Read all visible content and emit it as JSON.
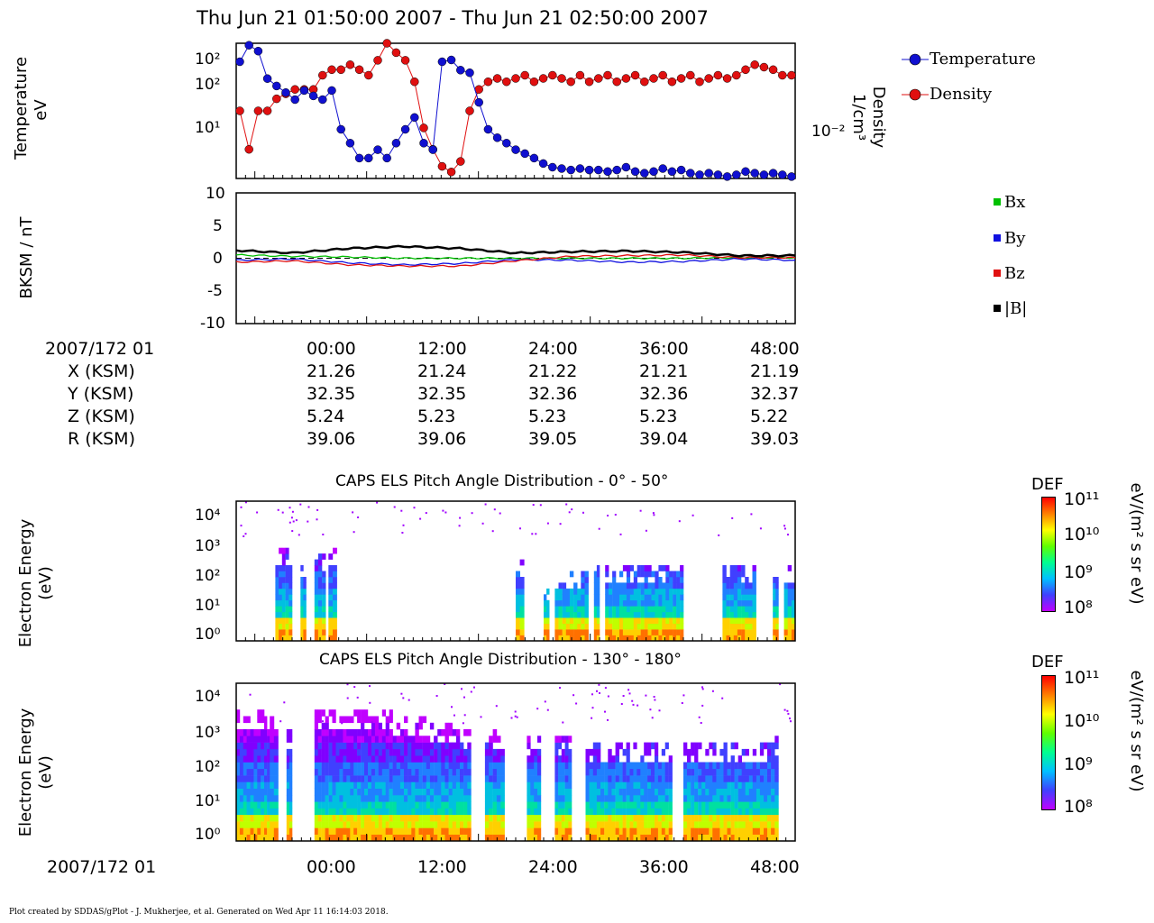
{
  "header": {
    "title": "Thu Jun 21 01:50:00 2007 - Thu Jun 21 02:50:00 2007"
  },
  "colors": {
    "temperature": "#1010d0",
    "density": "#e01010",
    "bx": "#00c000",
    "by": "#1010e0",
    "bz": "#e01010",
    "bmag": "#000000"
  },
  "chart_data": [
    {
      "type": "scatter",
      "panel": "plasma-moments",
      "ylabel": "Temperature\neV",
      "ylabel_right": "Density\n1/cm³",
      "yscale": "log",
      "left_ticks": [
        "10²",
        "10²",
        "10¹"
      ],
      "right_ticks": [
        "10⁻²"
      ],
      "legend": [
        "Temperature",
        "Density"
      ],
      "legend_placement": "right",
      "x": [
        0,
        1,
        2,
        3,
        4,
        5,
        6,
        7,
        8,
        9,
        10,
        11,
        12,
        13,
        14,
        15,
        16,
        17,
        18,
        19,
        20,
        21,
        22,
        23,
        24,
        25,
        26,
        27,
        28,
        29,
        30,
        31,
        32,
        33,
        34,
        35,
        36,
        37,
        38,
        39,
        40,
        41,
        42,
        43,
        44,
        45,
        46,
        47,
        48,
        49,
        50,
        51,
        52,
        53,
        54,
        55,
        56,
        57,
        58,
        59,
        60
      ],
      "series": [
        {
          "name": "Temperature",
          "values": [
            80,
            140,
            115,
            45,
            35,
            28,
            22,
            30,
            25,
            22,
            30,
            8,
            5,
            3,
            3,
            4,
            3,
            5,
            8,
            12,
            5,
            4,
            80,
            85,
            60,
            55,
            20,
            8,
            6,
            5,
            4,
            3.5,
            3,
            2.5,
            2.2,
            2.1,
            2,
            2.1,
            2,
            2,
            1.9,
            2,
            2.2,
            1.9,
            1.8,
            1.9,
            2.1,
            1.9,
            2,
            1.8,
            1.7,
            1.8,
            1.7,
            1.6,
            1.7,
            1.9,
            1.8,
            1.7,
            1.8,
            1.7,
            1.6
          ]
        },
        {
          "name": "Density",
          "values": [
            0.03,
            0.012,
            0.03,
            0.03,
            0.04,
            0.045,
            0.05,
            0.05,
            0.05,
            0.07,
            0.08,
            0.08,
            0.09,
            0.08,
            0.07,
            0.1,
            0.15,
            0.12,
            0.1,
            0.06,
            0.02,
            0.012,
            0.008,
            0.007,
            0.009,
            0.03,
            0.05,
            0.06,
            0.065,
            0.06,
            0.065,
            0.07,
            0.06,
            0.065,
            0.07,
            0.065,
            0.06,
            0.07,
            0.06,
            0.065,
            0.07,
            0.06,
            0.065,
            0.07,
            0.06,
            0.065,
            0.07,
            0.06,
            0.065,
            0.07,
            0.06,
            0.065,
            0.07,
            0.065,
            0.07,
            0.08,
            0.09,
            0.085,
            0.08,
            0.07,
            0.07
          ]
        }
      ]
    },
    {
      "type": "line",
      "panel": "magnetic-field",
      "ylabel": "BKSM / nT",
      "ylim": [
        -10,
        10
      ],
      "y_ticks": [
        "10",
        "5",
        "0",
        "-5",
        "-10"
      ],
      "legend": [
        "Bx",
        "By",
        "Bz",
        "|B|"
      ],
      "legend_placement": "right",
      "x": [
        0,
        5,
        10,
        15,
        20,
        25,
        30,
        35,
        40,
        45,
        50
      ],
      "series": [
        {
          "name": "Bx",
          "values": [
            0.5,
            0.3,
            0.2,
            0,
            0,
            0,
            0,
            0,
            0,
            0.1,
            0.1
          ]
        },
        {
          "name": "By",
          "values": [
            -0.3,
            -0.1,
            -0.7,
            -1,
            -0.8,
            -0.2,
            -0.3,
            -0.6,
            -0.5,
            -0.1,
            -0.3
          ]
        },
        {
          "name": "Bz",
          "values": [
            -0.6,
            -0.4,
            -1,
            -1.2,
            -1.2,
            -0.4,
            0.3,
            0.4,
            0.5,
            0.1,
            0.1
          ]
        },
        {
          "name": "|B|",
          "values": [
            1.2,
            0.8,
            1.5,
            1.8,
            1.5,
            0.8,
            1,
            1.1,
            0.9,
            0.4,
            0.4
          ]
        }
      ]
    },
    {
      "type": "heatmap",
      "panel": "pad-0-50",
      "title": "CAPS ELS Pitch Angle Distribution - 0° - 50°",
      "ylabel": "Electron Energy\n(eV)",
      "y_ticks": [
        "10⁴",
        "10³",
        "10²",
        "10¹",
        "10⁰"
      ],
      "colorbar": {
        "label": "DEF",
        "unit": "eV/(m² s sr eV)",
        "ticks": [
          "10¹¹",
          "10¹⁰",
          "10⁹",
          "10⁸"
        ]
      }
    },
    {
      "type": "heatmap",
      "panel": "pad-130-180",
      "title": "CAPS ELS Pitch Angle Distribution - 130° - 180°",
      "ylabel": "Electron Energy\n(eV)",
      "y_ticks": [
        "10⁴",
        "10³",
        "10²",
        "10¹",
        "10⁰"
      ],
      "colorbar": {
        "label": "DEF",
        "unit": "eV/(m² s sr eV)",
        "ticks": [
          "10¹¹",
          "10¹⁰",
          "10⁹",
          "10⁸"
        ]
      }
    }
  ],
  "ephemeris": {
    "row_labels": [
      "2007/172 01",
      "X (KSM)",
      "Y (KSM)",
      "Z (KSM)",
      "R (KSM)"
    ],
    "columns": [
      {
        "time": "00:00",
        "x": "21.26",
        "y": "32.35",
        "z": "5.24",
        "r": "39.06"
      },
      {
        "time": "12:00",
        "x": "21.24",
        "y": "32.35",
        "z": "5.23",
        "r": "39.06"
      },
      {
        "time": "24:00",
        "x": "21.22",
        "y": "32.36",
        "z": "5.23",
        "r": "39.05"
      },
      {
        "time": "36:00",
        "x": "21.21",
        "y": "32.36",
        "z": "5.23",
        "r": "39.04"
      },
      {
        "time": "48:00",
        "x": "21.19",
        "y": "32.37",
        "z": "5.22",
        "r": "39.03"
      }
    ]
  },
  "bottom_axis": {
    "date_label": "2007/172 01",
    "ticks": [
      "00:00",
      "12:00",
      "24:00",
      "36:00",
      "48:00"
    ]
  },
  "footer": "Plot created by SDDAS/gPlot - J. Mukherjee, et al.  Generated on Wed Apr 11 16:14:03 2018."
}
